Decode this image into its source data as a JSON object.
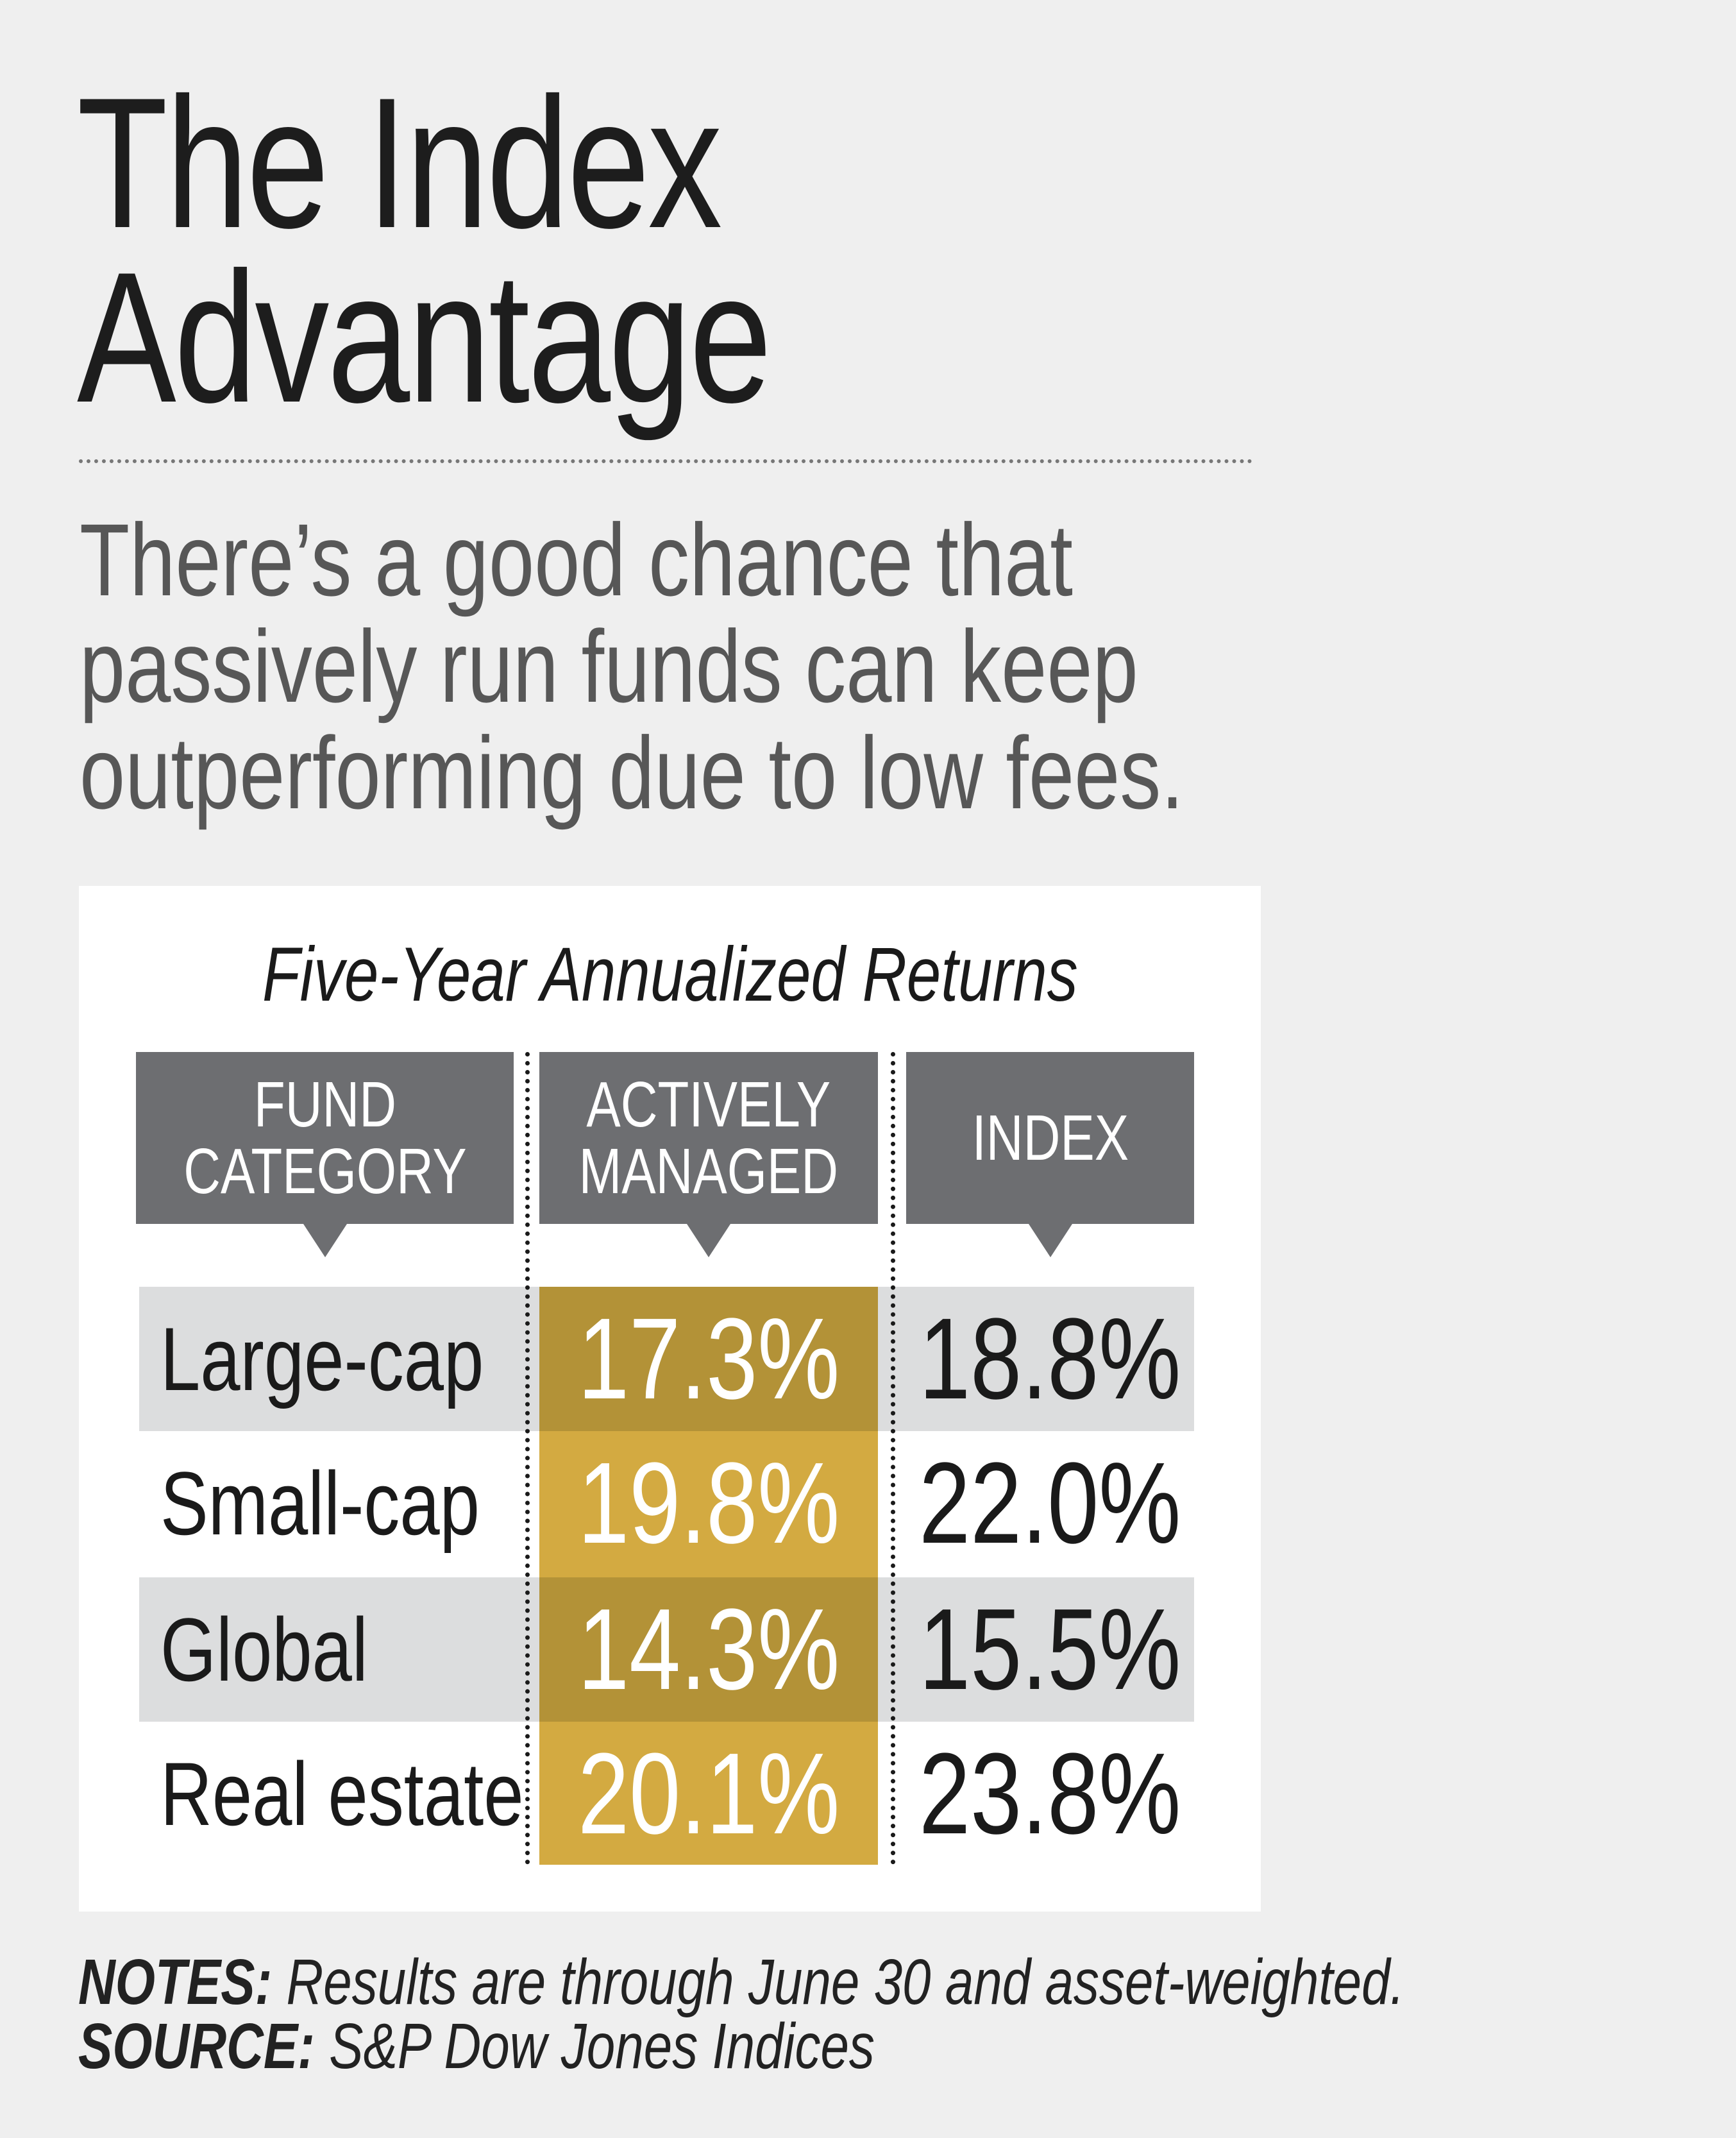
{
  "header": {
    "title_line1": "The Index",
    "title_line2": "Advantage",
    "subtitle_lines": [
      "There’s a good chance that",
      "passively run funds can keep",
      "outperforming due to low fees."
    ]
  },
  "table": {
    "title": "Five-Year Annualized Returns",
    "columns": [
      {
        "line1": "FUND",
        "line2": "CATEGORY"
      },
      {
        "line1": "ACTIVELY",
        "line2": "MANAGED"
      },
      {
        "line1": "INDEX",
        "line2": ""
      }
    ],
    "rows": [
      {
        "category": "Large-cap",
        "active": "17.3%",
        "index": "18.8%"
      },
      {
        "category": "Small-cap",
        "active": "19.8%",
        "index": "22.0%"
      },
      {
        "category": "Global",
        "active": "14.3%",
        "index": "15.5%"
      },
      {
        "category": "Real estate",
        "active": "20.1%",
        "index": "23.8%"
      }
    ],
    "colors": {
      "header": "#6d6e71",
      "row_shade": "#dcddde",
      "active_dark": "#b39237",
      "active_light": "#d3aa41"
    }
  },
  "footer": {
    "notes_label": "NOTES:",
    "notes_text": "Results are through June 30 and asset-weighted.",
    "source_label": "SOURCE:",
    "source_text": "S&P Dow Jones Indices"
  }
}
